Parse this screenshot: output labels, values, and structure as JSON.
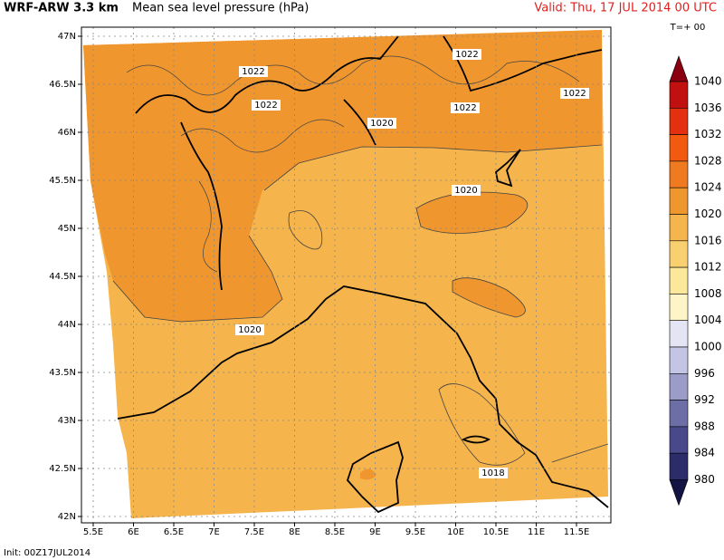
{
  "header": {
    "model": "WRF-ARW 3.3 km",
    "title": "Mean sea level pressure (hPa)",
    "valid": "Valid: Thu, 17 JUL 2014 00 UTC",
    "lead": "T=+ 00"
  },
  "map": {
    "lon_labels": [
      "5.5E",
      "6E",
      "6.5E",
      "7E",
      "7.5E",
      "8E",
      "8.5E",
      "9E",
      "9.5E",
      "10E",
      "10.5E",
      "11E",
      "11.5E"
    ],
    "lat_labels": [
      "47N",
      "46.5N",
      "46N",
      "45.5N",
      "45N",
      "44.5N",
      "44N",
      "43.5N",
      "43N",
      "42.5N",
      "42N"
    ],
    "contour_labels": [
      "1022",
      "1022",
      "1022",
      "1022",
      "1022",
      "1020",
      "1020",
      "1020",
      "1018"
    ]
  },
  "colorbar": {
    "levels": [
      1040,
      1036,
      1032,
      1028,
      1024,
      1020,
      1016,
      1012,
      1008,
      1004,
      1000,
      996,
      992,
      988,
      984,
      980
    ],
    "colors": [
      "#8a0010",
      "#c01010",
      "#e33010",
      "#f25a10",
      "#f07a20",
      "#f0962e",
      "#f5b44c",
      "#f9d070",
      "#fce89a",
      "#fdf4c8",
      "#e4e4f4",
      "#c4c4e4",
      "#9c9cc8",
      "#6e6ea6",
      "#48488a",
      "#2c2c6a",
      "#141444"
    ]
  },
  "footer": {
    "init": "Init: 00Z17JUL2014"
  }
}
